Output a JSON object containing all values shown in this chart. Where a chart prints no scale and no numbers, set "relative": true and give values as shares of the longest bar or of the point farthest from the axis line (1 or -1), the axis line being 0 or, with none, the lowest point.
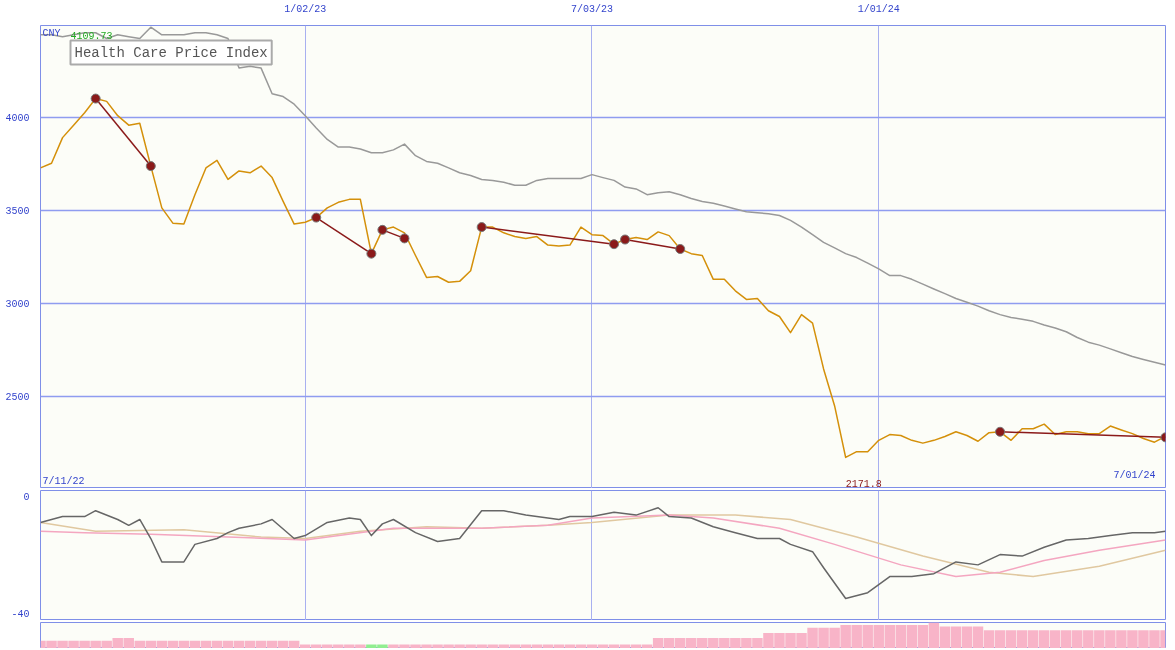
{
  "chart_data": [
    {
      "type": "line",
      "title": "Health Care Price Index",
      "ylabel": "CNY",
      "annotations": [
        "4109.73",
        "2171.8",
        "7/11/22",
        "7/01/24"
      ],
      "x": [
        "2022-07-18",
        "2022-07-25",
        "2022-08-01",
        "2022-08-08",
        "2022-08-15",
        "2022-08-22",
        "2022-08-29",
        "2022-09-05",
        "2022-09-12",
        "2022-09-19",
        "2022-09-26",
        "2022-10-03",
        "2022-10-10",
        "2022-10-17",
        "2022-10-24",
        "2022-10-31",
        "2022-11-07",
        "2022-11-14",
        "2022-11-21",
        "2022-11-28",
        "2022-12-05",
        "2022-12-12",
        "2022-12-19",
        "2022-12-26",
        "2023-01-02",
        "2023-01-09",
        "2023-01-16",
        "2023-01-23",
        "2023-01-30",
        "2023-02-06",
        "2023-02-13",
        "2023-02-20",
        "2023-02-27",
        "2023-03-06",
        "2023-03-13",
        "2023-03-20",
        "2023-03-27",
        "2023-04-03",
        "2023-04-10",
        "2023-04-17",
        "2023-04-24",
        "2023-05-01",
        "2023-05-08",
        "2023-05-15",
        "2023-05-22",
        "2023-05-29",
        "2023-06-05",
        "2023-06-12",
        "2023-06-19",
        "2023-06-26",
        "2023-07-03",
        "2023-07-10",
        "2023-07-17",
        "2023-07-24",
        "2023-07-31",
        "2023-08-07",
        "2023-08-14",
        "2023-08-21",
        "2023-08-28",
        "2023-09-04",
        "2023-09-11",
        "2023-09-18",
        "2023-09-25",
        "2023-10-02",
        "2023-10-09",
        "2023-10-16",
        "2023-10-23",
        "2023-10-30",
        "2023-11-06",
        "2023-11-13",
        "2023-11-20",
        "2023-11-27",
        "2023-12-04",
        "2023-12-11",
        "2023-12-18",
        "2023-12-25",
        "2024-01-01",
        "2024-01-08",
        "2024-01-15",
        "2024-01-22",
        "2024-01-29",
        "2024-02-05",
        "2024-02-12",
        "2024-02-19",
        "2024-02-26",
        "2024-03-04",
        "2024-03-11",
        "2024-03-18",
        "2024-03-25",
        "2024-04-01",
        "2024-04-08",
        "2024-04-15",
        "2024-04-22",
        "2024-04-29",
        "2024-05-06",
        "2024-05-13",
        "2024-05-20",
        "2024-05-27",
        "2024-06-03",
        "2024-06-10",
        "2024-06-17",
        "2024-06-24",
        "2024-07-01"
      ],
      "series": [
        {
          "color": "#d4900a",
          "values": [
            3729,
            3754,
            3892,
            3959,
            4026,
            4102,
            4087,
            4010,
            3959,
            3969,
            3739,
            3514,
            3432,
            3427,
            3585,
            3729,
            3770,
            3667,
            3713,
            3703,
            3739,
            3677,
            3549,
            3427,
            3437,
            3462,
            3514,
            3544,
            3560,
            3560,
            3268,
            3396,
            3411,
            3380,
            3258,
            3140,
            3145,
            3114,
            3119,
            3176,
            3411,
            3411,
            3380,
            3360,
            3350,
            3360,
            3314,
            3309,
            3314,
            3411,
            3370,
            3365,
            3319,
            3344,
            3355,
            3344,
            3385,
            3365,
            3293,
            3268,
            3258,
            3130,
            3130,
            3068,
            3022,
            3027,
            2961,
            2930,
            2843,
            2940,
            2894,
            2648,
            2449,
            2172,
            2203,
            2203,
            2264,
            2295,
            2290,
            2264,
            2249,
            2264,
            2285,
            2310,
            2290,
            2259,
            2305,
            2310,
            2264,
            2326,
            2326,
            2351,
            2295,
            2310,
            2310,
            2300,
            2300,
            2341,
            2320,
            2300,
            2274,
            2254,
            2285
          ]
        },
        {
          "color": "#999999",
          "values": [
            4445,
            4445,
            4435,
            4445,
            4456,
            4456,
            4425,
            4445,
            4435,
            4425,
            4486,
            4445,
            4445,
            4445,
            4456,
            4456,
            4445,
            4425,
            4266,
            4276,
            4266,
            4128,
            4113,
            4072,
            4010,
            3944,
            3882,
            3841,
            3841,
            3831,
            3811,
            3811,
            3826,
            3857,
            3795,
            3764,
            3754,
            3729,
            3703,
            3688,
            3667,
            3662,
            3652,
            3636,
            3636,
            3662,
            3672,
            3672,
            3672,
            3672,
            3693,
            3677,
            3662,
            3626,
            3616,
            3585,
            3596,
            3601,
            3585,
            3565,
            3549,
            3539,
            3524,
            3508,
            3493,
            3488,
            3483,
            3473,
            3447,
            3411,
            3370,
            3329,
            3299,
            3268,
            3247,
            3217,
            3186,
            3150,
            3150,
            3130,
            3104,
            3078,
            3053,
            3027,
            3007,
            2986,
            2961,
            2940,
            2925,
            2915,
            2904,
            2884,
            2868,
            2848,
            2817,
            2792,
            2776,
            2756,
            2735,
            2715,
            2699,
            2684,
            2669
          ]
        },
        {
          "color": "#8b1a1a",
          "marker": "circle",
          "x": [
            "2022-08-22",
            "2022-09-26"
          ],
          "values": [
            4102,
            3739
          ]
        },
        {
          "color": "#8b1a1a",
          "marker": "circle",
          "x": [
            "2023-01-09",
            "2023-02-13"
          ],
          "values": [
            3462,
            3268
          ]
        },
        {
          "color": "#8b1a1a",
          "marker": "circle",
          "x": [
            "2023-02-20",
            "2023-03-06"
          ],
          "values": [
            3396,
            3350
          ]
        },
        {
          "color": "#8b1a1a",
          "marker": "circle",
          "x": [
            "2023-04-24",
            "2023-07-17"
          ],
          "values": [
            3411,
            3319
          ]
        },
        {
          "color": "#8b1a1a",
          "marker": "circle",
          "x": [
            "2023-07-24",
            "2023-08-28"
          ],
          "values": [
            3344,
            3293
          ]
        },
        {
          "color": "#8b1a1a",
          "marker": "circle",
          "x": [
            "2024-03-18",
            "2024-07-01"
          ],
          "values": [
            2310,
            2280
          ]
        }
      ],
      "xlim": [
        "2022-07-18",
        "2024-07-01"
      ],
      "ylim": [
        2005,
        4495
      ],
      "xticks": [
        {
          "value": "2023-01-02",
          "label": "1/02/23"
        },
        {
          "value": "2023-07-03",
          "label": "7/03/23"
        },
        {
          "value": "2024-01-01",
          "label": "1/01/24"
        }
      ],
      "yticks": [
        2500,
        3000,
        3500,
        4000
      ],
      "grid": true
    },
    {
      "type": "line",
      "tick_labels": "y",
      "grid": "x",
      "xlim": [
        "2022-07-18",
        "2024-07-01"
      ],
      "ylim": [
        -42.5,
        1.9
      ],
      "yticks": [
        -40,
        0
      ],
      "xticks": [
        {
          "value": "2023-01-02",
          "label": null
        },
        {
          "value": "2023-07-03",
          "label": null
        },
        {
          "value": "2024-01-01",
          "label": null
        }
      ],
      "series": [
        {
          "color": "#e0c8a0",
          "x": [
            "2022-07-18",
            "2022-08-22",
            "2022-10-17",
            "2022-12-05",
            "2023-01-02",
            "2023-02-06",
            "2023-03-20",
            "2023-04-24",
            "2023-06-05",
            "2023-07-03",
            "2023-08-21",
            "2023-10-02",
            "2023-11-06",
            "2023-12-18",
            "2024-01-29",
            "2024-03-11",
            "2024-04-08",
            "2024-05-20",
            "2024-07-01"
          ],
          "values": [
            -9,
            -12,
            -11.5,
            -14,
            -14.5,
            -12,
            -10.5,
            -11,
            -10,
            -9,
            -6.5,
            -6.5,
            -8,
            -14,
            -20.5,
            -26,
            -27.5,
            -24,
            -18.5
          ]
        },
        {
          "color": "#f4a6c0",
          "x": [
            "2022-07-18",
            "2022-08-15",
            "2022-09-26",
            "2022-11-14",
            "2023-01-02",
            "2023-02-27",
            "2023-04-24",
            "2023-06-05",
            "2023-07-03",
            "2023-08-21",
            "2023-09-18",
            "2023-10-30",
            "2023-12-04",
            "2024-01-15",
            "2024-02-19",
            "2024-03-18",
            "2024-04-15",
            "2024-05-20",
            "2024-07-01"
          ],
          "values": [
            -12,
            -12.5,
            -13,
            -14,
            -15,
            -11,
            -11,
            -10,
            -7.5,
            -6.5,
            -7.5,
            -11,
            -16.5,
            -23.5,
            -27.5,
            -26,
            -22,
            -18.5,
            -15
          ]
        },
        {
          "color": "#666666",
          "x": [
            "2022-07-18",
            "2022-08-01",
            "2022-08-15",
            "2022-08-22",
            "2022-09-05",
            "2022-09-12",
            "2022-09-19",
            "2022-09-26",
            "2022-10-03",
            "2022-10-17",
            "2022-10-24",
            "2022-11-07",
            "2022-11-14",
            "2022-11-21",
            "2022-12-05",
            "2022-12-12",
            "2022-12-26",
            "2023-01-02",
            "2023-01-16",
            "2023-01-30",
            "2023-02-06",
            "2023-02-13",
            "2023-02-20",
            "2023-02-27",
            "2023-03-13",
            "2023-03-27",
            "2023-04-10",
            "2023-04-24",
            "2023-05-08",
            "2023-05-22",
            "2023-05-29",
            "2023-06-12",
            "2023-06-19",
            "2023-07-03",
            "2023-07-17",
            "2023-07-31",
            "2023-08-14",
            "2023-08-21",
            "2023-09-04",
            "2023-09-18",
            "2023-10-02",
            "2023-10-16",
            "2023-10-30",
            "2023-11-06",
            "2023-11-20",
            "2023-11-27",
            "2023-12-11",
            "2023-12-25",
            "2024-01-08",
            "2024-01-22",
            "2024-02-05",
            "2024-02-19",
            "2024-03-04",
            "2024-03-18",
            "2024-04-01",
            "2024-04-15",
            "2024-04-29",
            "2024-05-13",
            "2024-05-27",
            "2024-06-10",
            "2024-06-24",
            "2024-07-01"
          ],
          "values": [
            -9,
            -7,
            -7,
            -5,
            -8,
            -10,
            -8,
            -14.5,
            -22.5,
            -22.5,
            -16.5,
            -14.5,
            -12.5,
            -11,
            -9.5,
            -8,
            -14.5,
            -13.5,
            -9,
            -7.5,
            -8,
            -13.5,
            -9.5,
            -8,
            -12.5,
            -15.5,
            -14.5,
            -5,
            -5,
            -6.5,
            -7,
            -8,
            -7,
            -7,
            -5.5,
            -6.5,
            -4,
            -7,
            -7.5,
            -10.5,
            -12.5,
            -14.5,
            -14.5,
            -16.5,
            -19,
            -24.5,
            -35,
            -33,
            -27.5,
            -27.5,
            -26.5,
            -22.5,
            -23.5,
            -20,
            -20.5,
            -17.5,
            -15,
            -14.5,
            -13.5,
            -12.5,
            -12.5,
            -12
          ]
        }
      ]
    },
    {
      "type": "bar",
      "relative": true,
      "tick_labels": false,
      "grid": false,
      "xlim": [
        "2022-07-18",
        "2024-07-01"
      ],
      "x": [
        "2022-07-18",
        "2022-07-25",
        "2022-08-01",
        "2022-08-08",
        "2022-08-15",
        "2022-08-22",
        "2022-08-29",
        "2022-09-05",
        "2022-09-12",
        "2022-09-19",
        "2022-09-26",
        "2022-10-03",
        "2022-10-10",
        "2022-10-17",
        "2022-10-24",
        "2022-10-31",
        "2022-11-07",
        "2022-11-14",
        "2022-11-21",
        "2022-11-28",
        "2022-12-05",
        "2022-12-12",
        "2022-12-19",
        "2022-12-26",
        "2023-01-02",
        "2023-01-09",
        "2023-01-16",
        "2023-01-23",
        "2023-01-30",
        "2023-02-06",
        "2023-02-13",
        "2023-02-20",
        "2023-02-27",
        "2023-03-06",
        "2023-03-13",
        "2023-03-20",
        "2023-03-27",
        "2023-04-03",
        "2023-04-10",
        "2023-04-17",
        "2023-04-24",
        "2023-05-01",
        "2023-05-08",
        "2023-05-15",
        "2023-05-22",
        "2023-05-29",
        "2023-06-05",
        "2023-06-12",
        "2023-06-19",
        "2023-06-26",
        "2023-07-03",
        "2023-07-10",
        "2023-07-17",
        "2023-07-24",
        "2023-07-31",
        "2023-08-07",
        "2023-08-14",
        "2023-08-21",
        "2023-08-28",
        "2023-09-04",
        "2023-09-11",
        "2023-09-18",
        "2023-09-25",
        "2023-10-02",
        "2023-10-09",
        "2023-10-16",
        "2023-10-23",
        "2023-10-30",
        "2023-11-06",
        "2023-11-13",
        "2023-11-20",
        "2023-11-27",
        "2023-12-04",
        "2023-12-11",
        "2023-12-18",
        "2023-12-25",
        "2024-01-01",
        "2024-01-08",
        "2024-01-15",
        "2024-01-22",
        "2024-01-29",
        "2024-02-05",
        "2024-02-12",
        "2024-02-19",
        "2024-02-26",
        "2024-03-04",
        "2024-03-11",
        "2024-03-18",
        "2024-03-25",
        "2024-04-01",
        "2024-04-08",
        "2024-04-15",
        "2024-04-22",
        "2024-04-29",
        "2024-05-06",
        "2024-05-13",
        "2024-05-20",
        "2024-05-27",
        "2024-06-03",
        "2024-06-10",
        "2024-06-17",
        "2024-06-24",
        "2024-07-01"
      ],
      "values": [
        0.3,
        0.3,
        0.3,
        0.3,
        0.3,
        0.3,
        0.3,
        0.4,
        0.4,
        0.3,
        0.3,
        0.3,
        0.3,
        0.3,
        0.3,
        0.3,
        0.3,
        0.3,
        0.3,
        0.3,
        0.3,
        0.3,
        0.3,
        0.3,
        0.15,
        0.15,
        0.15,
        0.15,
        0.15,
        0.15,
        0.15,
        0.15,
        0.15,
        0.15,
        0.15,
        0.15,
        0.15,
        0.15,
        0.15,
        0.15,
        0.15,
        0.15,
        0.15,
        0.15,
        0.15,
        0.15,
        0.15,
        0.15,
        0.15,
        0.15,
        0.15,
        0.15,
        0.15,
        0.15,
        0.15,
        0.15,
        0.4,
        0.4,
        0.4,
        0.4,
        0.4,
        0.4,
        0.4,
        0.4,
        0.4,
        0.4,
        0.6,
        0.6,
        0.6,
        0.6,
        0.8,
        0.8,
        0.8,
        0.9,
        0.9,
        0.9,
        0.9,
        0.9,
        0.9,
        0.9,
        0.9,
        1,
        0.85,
        0.85,
        0.85,
        0.85,
        0.7,
        0.7,
        0.7,
        0.7,
        0.7,
        0.7,
        0.7,
        0.7,
        0.7,
        0.7,
        0.7,
        0.7,
        0.7,
        0.7,
        0.7,
        0.7,
        0.7
      ],
      "colors": [
        "#f8b4c8",
        "#f8b4c8",
        "#f8b4c8",
        "#f8b4c8",
        "#f8b4c8",
        "#f8b4c8",
        "#f8b4c8",
        "#f8b4c8",
        "#f8b4c8",
        "#f8b4c8",
        "#f8b4c8",
        "#f8b4c8",
        "#f8b4c8",
        "#f8b4c8",
        "#f8b4c8",
        "#f8b4c8",
        "#f8b4c8",
        "#f8b4c8",
        "#f8b4c8",
        "#f8b4c8",
        "#f8b4c8",
        "#f8b4c8",
        "#f8b4c8",
        "#f8b4c8",
        "#f8b4c8",
        "#f8b4c8",
        "#f8b4c8",
        "#f8b4c8",
        "#f8b4c8",
        "#f8b4c8",
        "#90ee90",
        "#90ee90",
        "#f8b4c8",
        "#f8b4c8",
        "#f8b4c8",
        "#f8b4c8",
        "#f8b4c8",
        "#f8b4c8",
        "#f8b4c8",
        "#f8b4c8",
        "#f8b4c8",
        "#f8b4c8",
        "#f8b4c8",
        "#f8b4c8",
        "#f8b4c8",
        "#f8b4c8",
        "#f8b4c8",
        "#f8b4c8",
        "#f8b4c8",
        "#f8b4c8",
        "#f8b4c8",
        "#f8b4c8",
        "#f8b4c8",
        "#f8b4c8",
        "#f8b4c8",
        "#f8b4c8",
        "#f8b4c8",
        "#f8b4c8",
        "#f8b4c8",
        "#f8b4c8",
        "#f8b4c8",
        "#f8b4c8",
        "#f8b4c8",
        "#f8b4c8",
        "#f8b4c8",
        "#f8b4c8",
        "#f8b4c8",
        "#f8b4c8",
        "#f8b4c8",
        "#f8b4c8",
        "#f8b4c8",
        "#f8b4c8",
        "#f8b4c8",
        "#f8b4c8",
        "#f8b4c8",
        "#f8b4c8",
        "#f8b4c8",
        "#f8b4c8",
        "#f8b4c8",
        "#f8b4c8",
        "#f8b4c8",
        "#f8b4c8",
        "#f8b4c8",
        "#f8b4c8",
        "#f8b4c8",
        "#f8b4c8",
        "#f8b4c8",
        "#f8b4c8",
        "#f8b4c8",
        "#f8b4c8",
        "#f8b4c8",
        "#f8b4c8",
        "#f8b4c8",
        "#f8b4c8",
        "#f8b4c8",
        "#f8b4c8",
        "#f8b4c8",
        "#f8b4c8",
        "#f8b4c8",
        "#f8b4c8",
        "#f8b4c8",
        "#f8b4c8",
        "#f8b4c8"
      ]
    }
  ]
}
